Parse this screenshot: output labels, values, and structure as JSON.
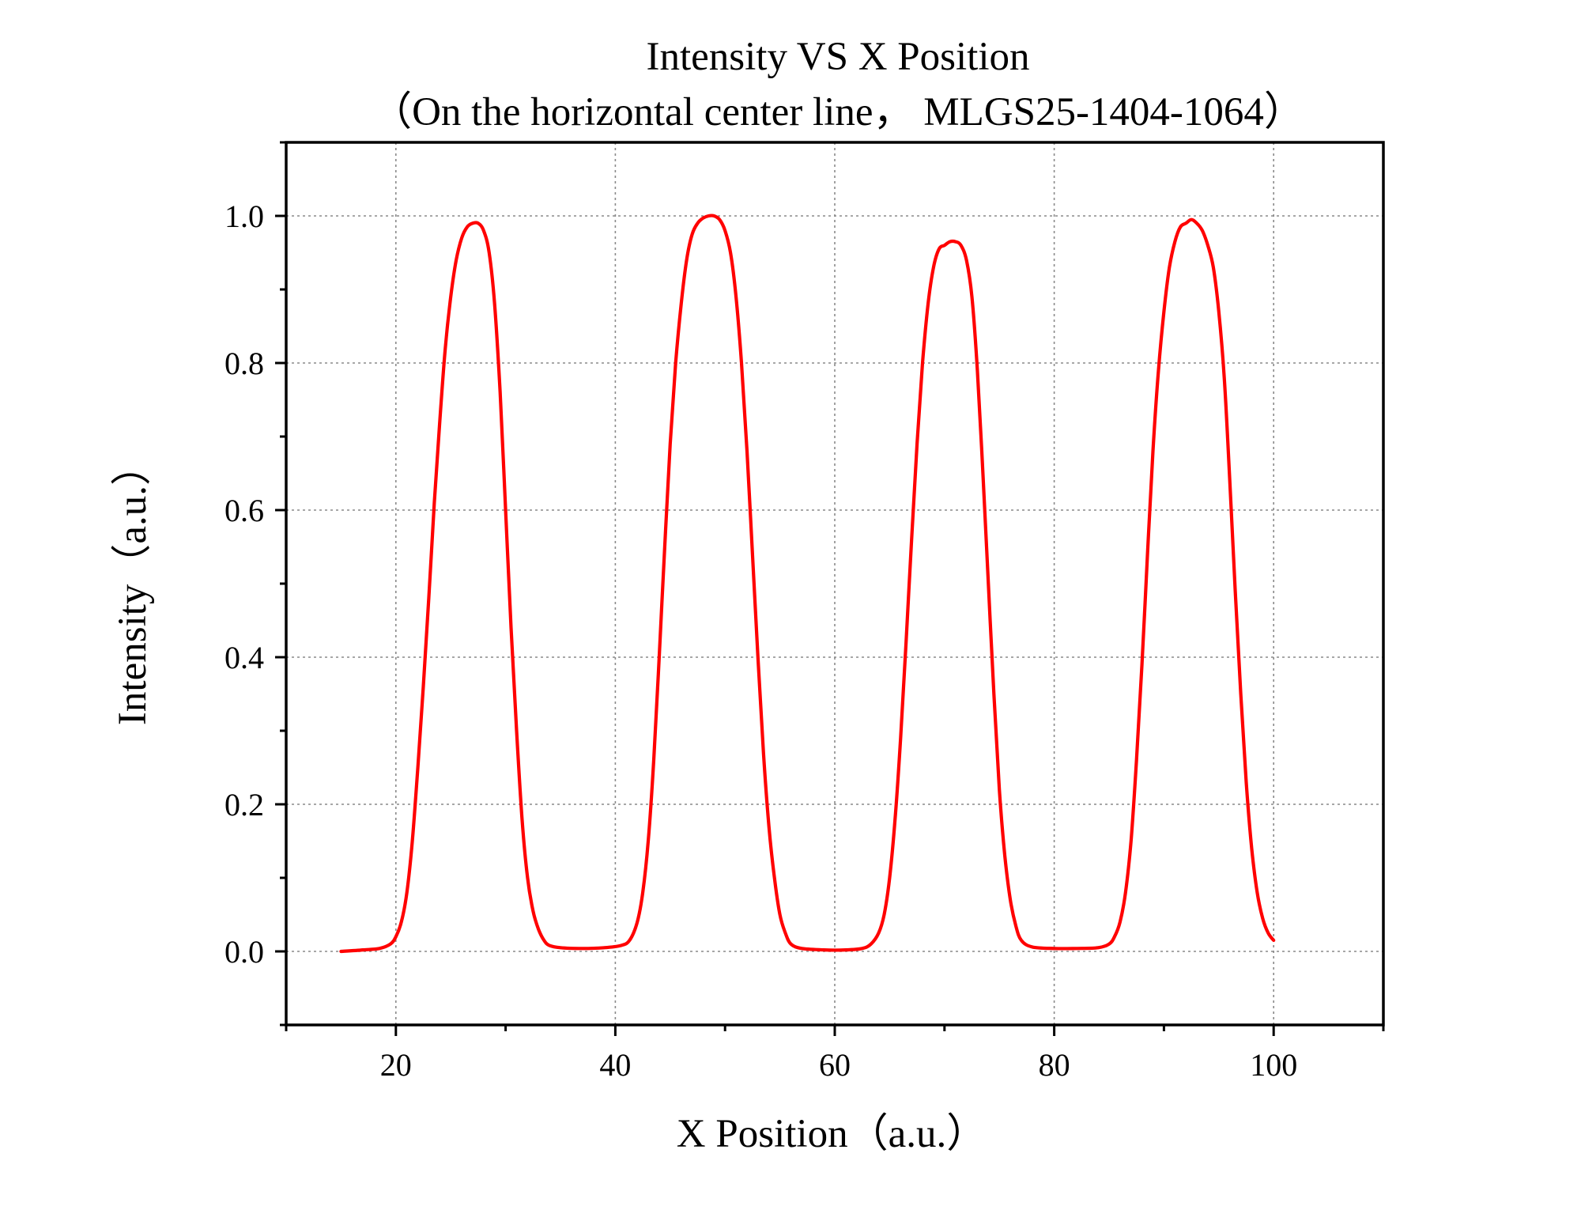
{
  "chart_data": {
    "type": "line",
    "title": "Intensity VS X Position",
    "subtitle": "（On the horizontal center line，  MLGS25-1404-1064）",
    "xlabel": "X Position（a.u.）",
    "ylabel": "Intensity（a.u.）",
    "xlim": [
      10,
      110
    ],
    "ylim": [
      -0.1,
      1.1
    ],
    "x_ticks": [
      20,
      40,
      60,
      80,
      100
    ],
    "y_ticks": [
      0.0,
      0.2,
      0.4,
      0.6,
      0.8,
      1.0
    ],
    "x_tick_labels": [
      "20",
      "40",
      "60",
      "80",
      "100"
    ],
    "y_tick_labels": [
      "0.0",
      "0.2",
      "0.4",
      "0.6",
      "0.8",
      "1.0"
    ],
    "grid": true,
    "legend": "none",
    "series": [
      {
        "color": "#ff0000",
        "points": [
          [
            15,
            0.0
          ],
          [
            17,
            0.002
          ],
          [
            18.5,
            0.004
          ],
          [
            19.5,
            0.01
          ],
          [
            20,
            0.02
          ],
          [
            20.5,
            0.04
          ],
          [
            21,
            0.08
          ],
          [
            21.5,
            0.15
          ],
          [
            22,
            0.25
          ],
          [
            22.5,
            0.36
          ],
          [
            23,
            0.48
          ],
          [
            23.5,
            0.61
          ],
          [
            24,
            0.72
          ],
          [
            24.5,
            0.82
          ],
          [
            25,
            0.89
          ],
          [
            25.5,
            0.94
          ],
          [
            26,
            0.97
          ],
          [
            26.5,
            0.985
          ],
          [
            27,
            0.99
          ],
          [
            27.5,
            0.99
          ],
          [
            28,
            0.98
          ],
          [
            28.5,
            0.95
          ],
          [
            29,
            0.88
          ],
          [
            29.5,
            0.76
          ],
          [
            30,
            0.6
          ],
          [
            30.5,
            0.44
          ],
          [
            31,
            0.3
          ],
          [
            31.5,
            0.18
          ],
          [
            32,
            0.1
          ],
          [
            32.5,
            0.055
          ],
          [
            33,
            0.03
          ],
          [
            33.5,
            0.015
          ],
          [
            34,
            0.008
          ],
          [
            35,
            0.005
          ],
          [
            37,
            0.004
          ],
          [
            39,
            0.005
          ],
          [
            40.5,
            0.008
          ],
          [
            41.3,
            0.015
          ],
          [
            42,
            0.04
          ],
          [
            42.5,
            0.08
          ],
          [
            43,
            0.15
          ],
          [
            43.5,
            0.26
          ],
          [
            44,
            0.4
          ],
          [
            44.5,
            0.55
          ],
          [
            45,
            0.69
          ],
          [
            45.5,
            0.8
          ],
          [
            46,
            0.88
          ],
          [
            46.5,
            0.94
          ],
          [
            47,
            0.975
          ],
          [
            47.5,
            0.99
          ],
          [
            48,
            0.997
          ],
          [
            48.5,
            1.0
          ],
          [
            49,
            1.0
          ],
          [
            49.5,
            0.995
          ],
          [
            50,
            0.98
          ],
          [
            50.5,
            0.95
          ],
          [
            51,
            0.89
          ],
          [
            51.5,
            0.8
          ],
          [
            52,
            0.68
          ],
          [
            52.5,
            0.54
          ],
          [
            53,
            0.4
          ],
          [
            53.5,
            0.27
          ],
          [
            54,
            0.17
          ],
          [
            54.5,
            0.1
          ],
          [
            55,
            0.05
          ],
          [
            55.5,
            0.025
          ],
          [
            56,
            0.01
          ],
          [
            57,
            0.004
          ],
          [
            59,
            0.002
          ],
          [
            61,
            0.002
          ],
          [
            62.5,
            0.004
          ],
          [
            63.3,
            0.01
          ],
          [
            64,
            0.025
          ],
          [
            64.5,
            0.05
          ],
          [
            65,
            0.1
          ],
          [
            65.5,
            0.18
          ],
          [
            66,
            0.29
          ],
          [
            66.5,
            0.42
          ],
          [
            67,
            0.56
          ],
          [
            67.5,
            0.69
          ],
          [
            68,
            0.8
          ],
          [
            68.5,
            0.88
          ],
          [
            69,
            0.93
          ],
          [
            69.5,
            0.955
          ],
          [
            70,
            0.96
          ],
          [
            70.5,
            0.965
          ],
          [
            71,
            0.965
          ],
          [
            71.5,
            0.96
          ],
          [
            72,
            0.94
          ],
          [
            72.5,
            0.89
          ],
          [
            73,
            0.79
          ],
          [
            73.5,
            0.65
          ],
          [
            74,
            0.5
          ],
          [
            74.5,
            0.35
          ],
          [
            75,
            0.22
          ],
          [
            75.5,
            0.13
          ],
          [
            76,
            0.07
          ],
          [
            76.5,
            0.035
          ],
          [
            77,
            0.015
          ],
          [
            78,
            0.006
          ],
          [
            80,
            0.004
          ],
          [
            82,
            0.004
          ],
          [
            84,
            0.005
          ],
          [
            85,
            0.01
          ],
          [
            85.5,
            0.02
          ],
          [
            86,
            0.04
          ],
          [
            86.5,
            0.08
          ],
          [
            87,
            0.15
          ],
          [
            87.5,
            0.26
          ],
          [
            88,
            0.39
          ],
          [
            88.5,
            0.54
          ],
          [
            89,
            0.68
          ],
          [
            89.5,
            0.79
          ],
          [
            90,
            0.87
          ],
          [
            90.5,
            0.93
          ],
          [
            91,
            0.965
          ],
          [
            91.5,
            0.985
          ],
          [
            92,
            0.99
          ],
          [
            92.5,
            0.995
          ],
          [
            93,
            0.99
          ],
          [
            93.5,
            0.98
          ],
          [
            94,
            0.96
          ],
          [
            94.5,
            0.93
          ],
          [
            95,
            0.87
          ],
          [
            95.5,
            0.78
          ],
          [
            96,
            0.64
          ],
          [
            96.5,
            0.49
          ],
          [
            97,
            0.35
          ],
          [
            97.5,
            0.23
          ],
          [
            98,
            0.14
          ],
          [
            98.5,
            0.08
          ],
          [
            99,
            0.045
          ],
          [
            99.5,
            0.025
          ],
          [
            100,
            0.015
          ]
        ]
      }
    ]
  }
}
